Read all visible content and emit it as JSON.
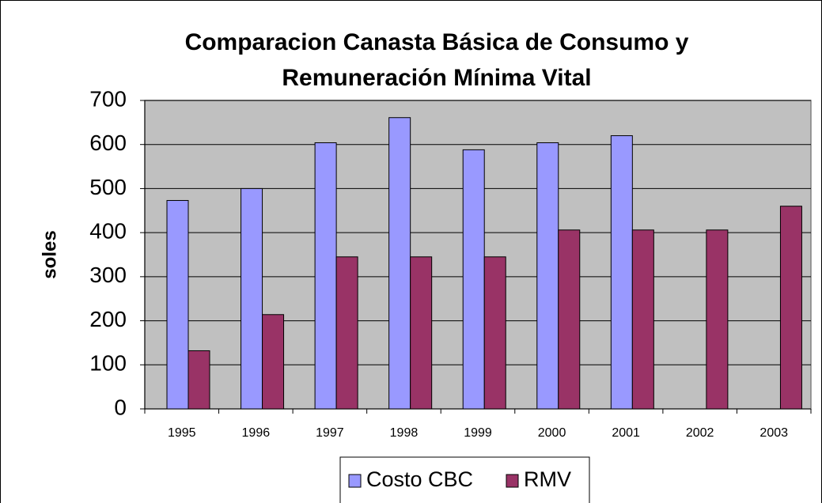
{
  "chart_data": {
    "type": "bar",
    "title": [
      "Comparacion Canasta Básica de Consumo y",
      "Remuneración Mínima Vital"
    ],
    "y_label": "soles",
    "categories": [
      "1995",
      "1996",
      "1997",
      "1998",
      "1999",
      "2000",
      "2001",
      "2002",
      "2003"
    ],
    "series": [
      {
        "name": "Costo CBC",
        "color": "#9999ff",
        "values": [
          473,
          500,
          604,
          661,
          588,
          604,
          620,
          null,
          null
        ]
      },
      {
        "name": "RMV",
        "color": "#993366",
        "values": [
          132,
          214,
          345,
          345,
          345,
          406,
          406,
          406,
          460
        ]
      }
    ],
    "ylim": [
      0,
      700
    ],
    "yticks": [
      0,
      100,
      200,
      300,
      400,
      500,
      600,
      700
    ],
    "grid": true,
    "plot_background": "#c0c0c0",
    "legend": "bottom"
  }
}
